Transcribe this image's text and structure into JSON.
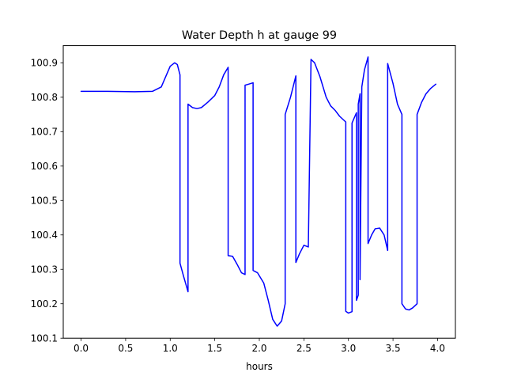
{
  "chart_data": {
    "type": "line",
    "title": "Water Depth h at gauge 99",
    "xlabel": "hours",
    "ylabel": "",
    "xlim": [
      -0.2,
      4.2
    ],
    "ylim": [
      100.1,
      100.95
    ],
    "grid": false,
    "x_ticks": [
      {
        "value": 0.0,
        "label": "0.0"
      },
      {
        "value": 0.5,
        "label": "0.5"
      },
      {
        "value": 1.0,
        "label": "1.0"
      },
      {
        "value": 1.5,
        "label": "1.5"
      },
      {
        "value": 2.0,
        "label": "2.0"
      },
      {
        "value": 2.5,
        "label": "2.5"
      },
      {
        "value": 3.0,
        "label": "3.0"
      },
      {
        "value": 3.5,
        "label": "3.5"
      },
      {
        "value": 4.0,
        "label": "4.0"
      }
    ],
    "y_ticks": [
      {
        "value": 100.1,
        "label": "100.1"
      },
      {
        "value": 100.2,
        "label": "100.2"
      },
      {
        "value": 100.3,
        "label": "100.3"
      },
      {
        "value": 100.4,
        "label": "100.4"
      },
      {
        "value": 100.5,
        "label": "100.5"
      },
      {
        "value": 100.6,
        "label": "100.6"
      },
      {
        "value": 100.7,
        "label": "100.7"
      },
      {
        "value": 100.8,
        "label": "100.8"
      },
      {
        "value": 100.9,
        "label": "100.9"
      }
    ],
    "series": [
      {
        "color": "#0000ff",
        "points": [
          [
            0.0,
            100.817
          ],
          [
            0.3,
            100.817
          ],
          [
            0.6,
            100.816
          ],
          [
            0.8,
            100.817
          ],
          [
            0.9,
            100.83
          ],
          [
            0.95,
            100.86
          ],
          [
            1.0,
            100.89
          ],
          [
            1.05,
            100.9
          ],
          [
            1.08,
            100.895
          ],
          [
            1.11,
            100.865
          ],
          [
            1.11,
            100.318
          ],
          [
            1.15,
            100.28
          ],
          [
            1.2,
            100.235
          ],
          [
            1.2,
            100.78
          ],
          [
            1.25,
            100.77
          ],
          [
            1.3,
            100.767
          ],
          [
            1.35,
            100.77
          ],
          [
            1.42,
            100.785
          ],
          [
            1.5,
            100.805
          ],
          [
            1.55,
            100.83
          ],
          [
            1.6,
            100.865
          ],
          [
            1.65,
            100.887
          ],
          [
            1.65,
            100.34
          ],
          [
            1.7,
            100.338
          ],
          [
            1.75,
            100.315
          ],
          [
            1.8,
            100.29
          ],
          [
            1.84,
            100.285
          ],
          [
            1.84,
            100.835
          ],
          [
            1.88,
            100.838
          ],
          [
            1.93,
            100.842
          ],
          [
            1.93,
            100.297
          ],
          [
            1.98,
            100.29
          ],
          [
            2.05,
            100.26
          ],
          [
            2.1,
            100.21
          ],
          [
            2.15,
            100.155
          ],
          [
            2.2,
            100.135
          ],
          [
            2.25,
            100.15
          ],
          [
            2.29,
            100.2
          ],
          [
            2.29,
            100.75
          ],
          [
            2.35,
            100.8
          ],
          [
            2.41,
            100.862
          ],
          [
            2.41,
            100.32
          ],
          [
            2.45,
            100.345
          ],
          [
            2.5,
            100.37
          ],
          [
            2.55,
            100.365
          ],
          [
            2.55,
            100.368
          ],
          [
            2.58,
            100.91
          ],
          [
            2.62,
            100.9
          ],
          [
            2.68,
            100.86
          ],
          [
            2.75,
            100.8
          ],
          [
            2.8,
            100.775
          ],
          [
            2.85,
            100.762
          ],
          [
            2.9,
            100.745
          ],
          [
            2.97,
            100.728
          ],
          [
            2.97,
            100.178
          ],
          [
            3.0,
            100.173
          ],
          [
            3.04,
            100.177
          ],
          [
            3.04,
            100.725
          ],
          [
            3.09,
            100.755
          ],
          [
            3.09,
            100.21
          ],
          [
            3.11,
            100.225
          ],
          [
            3.11,
            100.78
          ],
          [
            3.13,
            100.81
          ],
          [
            3.13,
            100.27
          ],
          [
            3.15,
            100.83
          ],
          [
            3.18,
            100.88
          ],
          [
            3.22,
            100.917
          ],
          [
            3.22,
            100.375
          ],
          [
            3.26,
            100.4
          ],
          [
            3.3,
            100.418
          ],
          [
            3.35,
            100.42
          ],
          [
            3.4,
            100.4
          ],
          [
            3.44,
            100.355
          ],
          [
            3.44,
            100.898
          ],
          [
            3.5,
            100.84
          ],
          [
            3.55,
            100.78
          ],
          [
            3.6,
            100.75
          ],
          [
            3.6,
            100.2
          ],
          [
            3.64,
            100.185
          ],
          [
            3.68,
            100.182
          ],
          [
            3.72,
            100.188
          ],
          [
            3.77,
            100.2
          ],
          [
            3.77,
            100.75
          ],
          [
            3.82,
            100.785
          ],
          [
            3.87,
            100.81
          ],
          [
            3.92,
            100.825
          ],
          [
            3.98,
            100.838
          ]
        ]
      }
    ]
  }
}
